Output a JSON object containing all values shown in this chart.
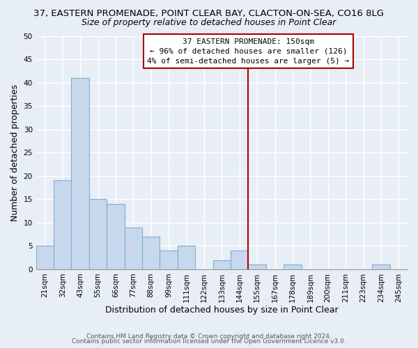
{
  "title": "37, EASTERN PROMENADE, POINT CLEAR BAY, CLACTON-ON-SEA, CO16 8LG",
  "subtitle": "Size of property relative to detached houses in Point Clear",
  "xlabel": "Distribution of detached houses by size in Point Clear",
  "ylabel": "Number of detached properties",
  "footer_line1": "Contains HM Land Registry data © Crown copyright and database right 2024.",
  "footer_line2": "Contains public sector information licensed under the Open Government Licence v3.0.",
  "bin_labels": [
    "21sqm",
    "32sqm",
    "43sqm",
    "55sqm",
    "66sqm",
    "77sqm",
    "88sqm",
    "99sqm",
    "111sqm",
    "122sqm",
    "133sqm",
    "144sqm",
    "155sqm",
    "167sqm",
    "178sqm",
    "189sqm",
    "200sqm",
    "211sqm",
    "223sqm",
    "234sqm",
    "245sqm"
  ],
  "bin_values": [
    5,
    19,
    41,
    15,
    14,
    9,
    7,
    4,
    5,
    0,
    2,
    4,
    1,
    0,
    1,
    0,
    0,
    0,
    0,
    1,
    0
  ],
  "bar_color": "#c8d8ec",
  "bar_edgecolor": "#7bafd4",
  "marker_color": "#aa0000",
  "annotation_box_edgecolor": "#aa0000",
  "ylim": [
    0,
    50
  ],
  "yticks": [
    0,
    5,
    10,
    15,
    20,
    25,
    30,
    35,
    40,
    45,
    50
  ],
  "background_color": "#e8eef5",
  "plot_bg_color": "#e8eef5",
  "grid_color": "#ffffff",
  "title_fontsize": 9.5,
  "subtitle_fontsize": 9,
  "axis_label_fontsize": 9,
  "tick_fontsize": 7.5,
  "footer_fontsize": 6.5,
  "marker_label": "37 EASTERN PROMENADE: 150sqm",
  "marker_line1": "← 96% of detached houses are smaller (126)",
  "marker_line2": "4% of semi-detached houses are larger (5) →"
}
